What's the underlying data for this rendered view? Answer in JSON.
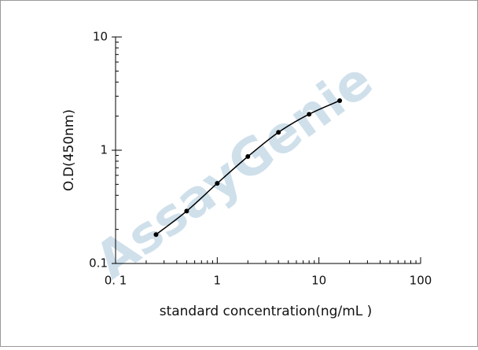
{
  "chart_data": {
    "type": "line",
    "x_label": "standard concentration(ng/mL )",
    "y_label": "O.D(450nm)",
    "watermark": "AssayGenie",
    "x_scale": "log",
    "y_scale": "log",
    "x": [
      0.25,
      0.5,
      1,
      2,
      4,
      8,
      16
    ],
    "series": [
      {
        "name": "O.D",
        "color": "#000000",
        "values": [
          0.18,
          0.29,
          0.51,
          0.88,
          1.44,
          2.08,
          2.74
        ]
      }
    ],
    "xlim": [
      0.1,
      100
    ],
    "xticks": [
      {
        "value": 0.1,
        "label": "0. 1"
      },
      1,
      10,
      100
    ],
    "ylim": [
      0.1,
      10
    ],
    "yticks": [
      0.1,
      1,
      10
    ]
  }
}
